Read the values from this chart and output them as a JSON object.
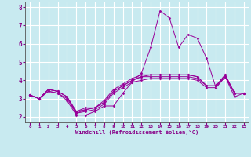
{
  "xlabel": "Windchill (Refroidissement éolien,°C)",
  "x": [
    0,
    1,
    2,
    3,
    4,
    5,
    6,
    7,
    8,
    9,
    10,
    11,
    12,
    13,
    14,
    15,
    16,
    17,
    18,
    19,
    20,
    21,
    22,
    23
  ],
  "series": [
    [
      3.2,
      3.0,
      3.4,
      3.3,
      2.9,
      2.1,
      2.1,
      2.3,
      2.6,
      2.6,
      3.3,
      3.9,
      4.4,
      5.8,
      7.8,
      7.4,
      5.8,
      6.5,
      6.3,
      5.2,
      3.6,
      4.2,
      3.1,
      3.3
    ],
    [
      3.2,
      3.0,
      3.4,
      3.3,
      3.0,
      2.2,
      2.3,
      2.4,
      2.7,
      3.3,
      3.6,
      3.9,
      4.0,
      4.1,
      4.1,
      4.1,
      4.1,
      4.1,
      4.0,
      3.6,
      3.6,
      4.2,
      3.3,
      3.3
    ],
    [
      3.2,
      3.0,
      3.5,
      3.4,
      3.1,
      2.2,
      2.4,
      2.5,
      2.8,
      3.4,
      3.7,
      4.0,
      4.2,
      4.2,
      4.2,
      4.2,
      4.2,
      4.2,
      4.1,
      3.7,
      3.7,
      4.2,
      3.3,
      3.3
    ],
    [
      3.2,
      3.0,
      3.5,
      3.4,
      3.1,
      2.3,
      2.4,
      2.5,
      2.8,
      3.4,
      3.7,
      4.0,
      4.2,
      4.3,
      4.3,
      4.3,
      4.3,
      4.3,
      4.2,
      3.7,
      3.7,
      4.3,
      3.3,
      3.3
    ],
    [
      3.2,
      3.0,
      3.5,
      3.4,
      3.1,
      2.3,
      2.5,
      2.5,
      2.9,
      3.5,
      3.8,
      4.1,
      4.3,
      4.3,
      4.3,
      4.3,
      4.3,
      4.3,
      4.2,
      3.7,
      3.7,
      4.3,
      3.3,
      3.3
    ]
  ],
  "line_color": "#990099",
  "marker": "D",
  "marker_size": 1.5,
  "bg_color": "#c8eaf0",
  "grid_color": "#ffffff",
  "axis_color": "#880088",
  "ylim": [
    1.7,
    8.3
  ],
  "xlim": [
    -0.5,
    23.5
  ],
  "yticks": [
    2,
    3,
    4,
    5,
    6,
    7,
    8
  ],
  "xticks": [
    0,
    1,
    2,
    3,
    4,
    5,
    6,
    7,
    8,
    9,
    10,
    11,
    12,
    13,
    14,
    15,
    16,
    17,
    18,
    19,
    20,
    21,
    22,
    23
  ]
}
